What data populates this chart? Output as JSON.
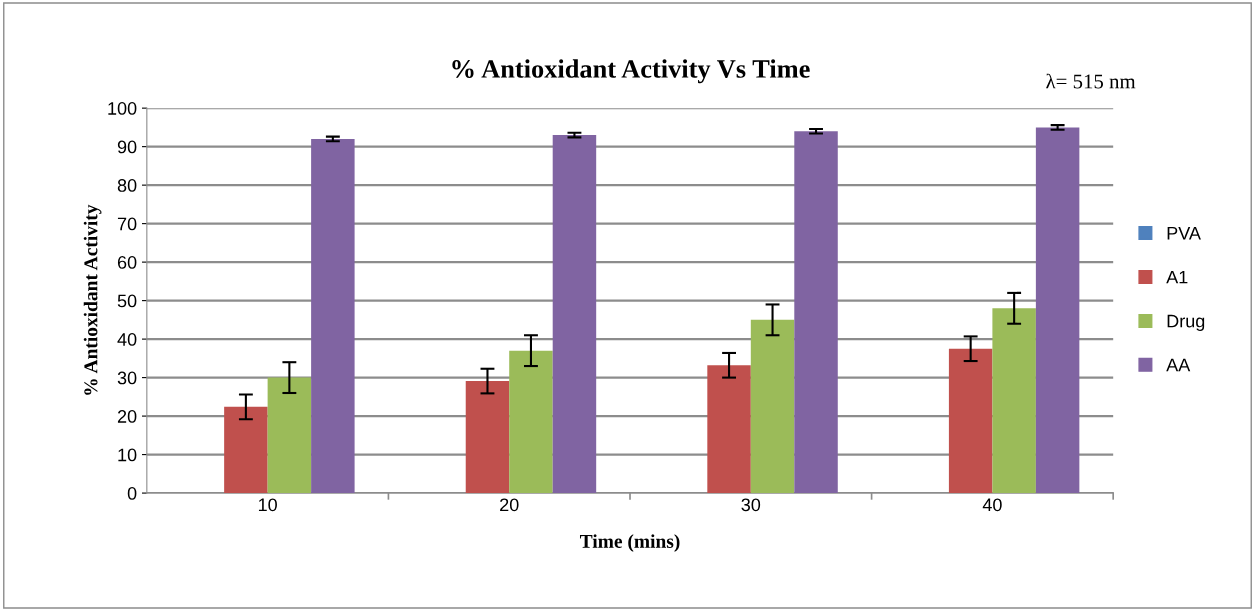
{
  "chart_data": {
    "type": "bar",
    "title": "% Antioxidant Activity Vs Time",
    "xlabel": "Time (mins)",
    "ylabel": "% Antioxidant Activity",
    "categories": [
      "10",
      "20",
      "30",
      "40"
    ],
    "series": [
      {
        "name": "PVA",
        "color": "#4f81bd",
        "values": [
          0,
          0,
          0,
          0
        ]
      },
      {
        "name": "A1",
        "color": "#c0504d",
        "values": [
          22.4,
          29.1,
          33.2,
          37.5
        ],
        "errors": [
          3.2,
          3.2,
          3.2,
          3.2
        ]
      },
      {
        "name": "Drug",
        "color": "#9bbb59",
        "values": [
          30,
          37,
          45,
          48
        ],
        "errors": [
          4,
          4,
          4,
          4
        ]
      },
      {
        "name": "AA",
        "color": "#8064a2",
        "values": [
          92,
          93,
          94,
          95
        ],
        "errors": [
          0.6,
          0.6,
          0.6,
          0.6
        ]
      }
    ],
    "ylim": [
      0,
      100
    ],
    "yticks": [
      0,
      10,
      20,
      30,
      40,
      50,
      60,
      70,
      80,
      90,
      100
    ],
    "grid": "y",
    "legend": "right",
    "annotations": [
      "λ= 515 nm"
    ]
  }
}
